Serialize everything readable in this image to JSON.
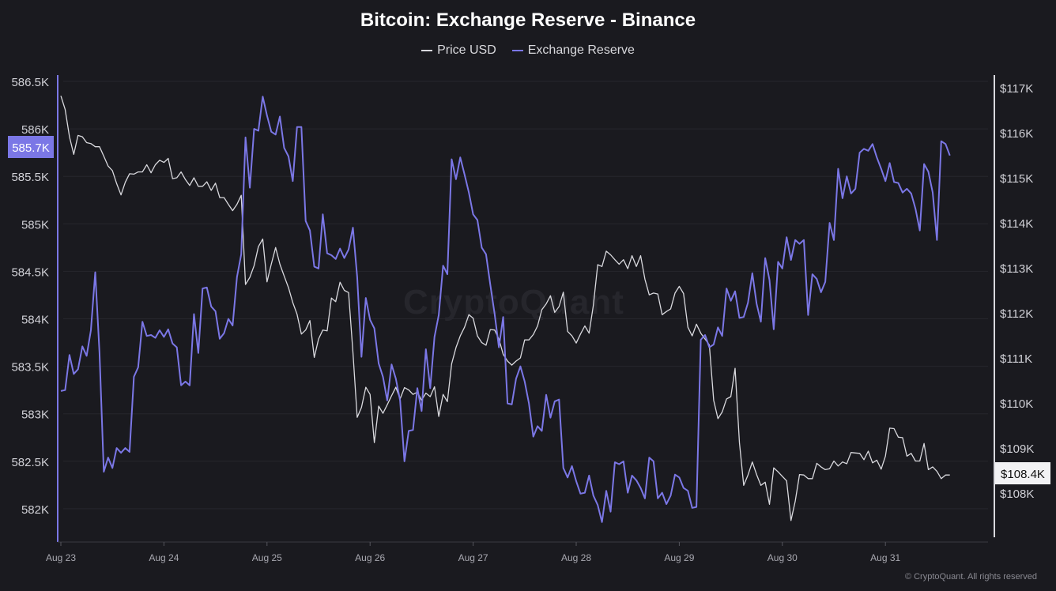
{
  "chart_data": {
    "type": "line",
    "title": "Bitcoin: Exchange Reserve - Binance",
    "legend_position": "top-center",
    "grid": true,
    "watermark": "CryptoQuant",
    "footer": "© CryptoQuant. All rights reserved",
    "x_ticks": [
      "Aug 23",
      "Aug 24",
      "Aug 25",
      "Aug 26",
      "Aug 27",
      "Aug 28",
      "Aug 29",
      "Aug 30",
      "Aug 31"
    ],
    "y_left": {
      "ticks": [
        "586.5K",
        "586K",
        "585.5K",
        "585K",
        "584.5K",
        "584K",
        "583.5K",
        "583K",
        "582.5K",
        "582K"
      ],
      "range": [
        582,
        586.5
      ],
      "current_label": "585.7K"
    },
    "y_right": {
      "ticks": [
        "$117K",
        "$116K",
        "$115K",
        "$114K",
        "$113K",
        "$112K",
        "$111K",
        "$110K",
        "$109K",
        "$108K"
      ],
      "range": [
        108,
        117
      ],
      "current_label": "$108.4K"
    },
    "x": [
      "Aug 23 00:00",
      "Aug 23 01:00",
      "Aug 23 02:00",
      "Aug 23 03:00",
      "Aug 23 04:00",
      "Aug 23 05:00",
      "Aug 23 06:00",
      "Aug 23 07:00",
      "Aug 23 08:00",
      "Aug 23 09:00",
      "Aug 23 10:00",
      "Aug 23 11:00",
      "Aug 23 12:00",
      "Aug 23 13:00",
      "Aug 23 14:00",
      "Aug 23 15:00",
      "Aug 23 16:00",
      "Aug 23 17:00",
      "Aug 23 18:00",
      "Aug 23 19:00",
      "Aug 23 20:00",
      "Aug 23 21:00",
      "Aug 23 22:00",
      "Aug 23 23:00",
      "Aug 24 00:00",
      "Aug 24 01:00",
      "Aug 24 02:00",
      "Aug 24 03:00",
      "Aug 24 04:00",
      "Aug 24 05:00",
      "Aug 24 06:00",
      "Aug 24 07:00",
      "Aug 24 08:00",
      "Aug 24 09:00",
      "Aug 24 10:00",
      "Aug 24 11:00",
      "Aug 24 12:00",
      "Aug 24 13:00",
      "Aug 24 14:00",
      "Aug 24 15:00",
      "Aug 24 16:00",
      "Aug 24 17:00",
      "Aug 24 18:00",
      "Aug 24 19:00",
      "Aug 24 20:00",
      "Aug 24 21:00",
      "Aug 24 22:00",
      "Aug 24 23:00",
      "Aug 25 00:00",
      "Aug 25 01:00",
      "Aug 25 02:00",
      "Aug 25 03:00",
      "Aug 25 04:00",
      "Aug 25 05:00",
      "Aug 25 06:00",
      "Aug 25 07:00",
      "Aug 25 08:00",
      "Aug 25 09:00",
      "Aug 25 10:00",
      "Aug 25 11:00",
      "Aug 25 12:00",
      "Aug 25 13:00",
      "Aug 25 14:00",
      "Aug 25 15:00",
      "Aug 25 16:00",
      "Aug 25 17:00",
      "Aug 25 18:00",
      "Aug 25 19:00",
      "Aug 25 20:00",
      "Aug 25 21:00",
      "Aug 25 22:00",
      "Aug 25 23:00",
      "Aug 26 00:00",
      "Aug 26 01:00",
      "Aug 26 02:00",
      "Aug 26 03:00",
      "Aug 26 04:00",
      "Aug 26 05:00",
      "Aug 26 06:00",
      "Aug 26 07:00",
      "Aug 26 08:00",
      "Aug 26 09:00",
      "Aug 26 10:00",
      "Aug 26 11:00",
      "Aug 26 12:00",
      "Aug 26 13:00",
      "Aug 26 14:00",
      "Aug 26 15:00",
      "Aug 26 16:00",
      "Aug 26 17:00",
      "Aug 26 18:00",
      "Aug 26 19:00",
      "Aug 26 20:00",
      "Aug 26 21:00",
      "Aug 26 22:00",
      "Aug 26 23:00",
      "Aug 27 00:00",
      "Aug 27 01:00",
      "Aug 27 02:00",
      "Aug 27 03:00",
      "Aug 27 04:00",
      "Aug 27 05:00",
      "Aug 27 06:00",
      "Aug 27 07:00",
      "Aug 27 08:00",
      "Aug 27 09:00",
      "Aug 27 10:00",
      "Aug 27 11:00",
      "Aug 27 12:00",
      "Aug 27 13:00",
      "Aug 27 14:00",
      "Aug 27 15:00",
      "Aug 27 16:00",
      "Aug 27 17:00",
      "Aug 27 18:00",
      "Aug 27 19:00",
      "Aug 27 20:00",
      "Aug 27 21:00",
      "Aug 27 22:00",
      "Aug 27 23:00",
      "Aug 28 00:00",
      "Aug 28 01:00",
      "Aug 28 02:00",
      "Aug 28 03:00",
      "Aug 28 04:00",
      "Aug 28 05:00",
      "Aug 28 06:00",
      "Aug 28 07:00",
      "Aug 28 08:00",
      "Aug 28 09:00",
      "Aug 28 10:00",
      "Aug 28 11:00",
      "Aug 28 12:00",
      "Aug 28 13:00",
      "Aug 28 14:00",
      "Aug 28 15:00",
      "Aug 28 16:00",
      "Aug 28 17:00",
      "Aug 28 18:00",
      "Aug 28 19:00",
      "Aug 28 20:00",
      "Aug 28 21:00",
      "Aug 28 22:00",
      "Aug 28 23:00",
      "Aug 29 00:00",
      "Aug 29 01:00",
      "Aug 29 02:00",
      "Aug 29 03:00",
      "Aug 29 04:00",
      "Aug 29 05:00",
      "Aug 29 06:00",
      "Aug 29 07:00",
      "Aug 29 08:00",
      "Aug 29 09:00",
      "Aug 29 10:00",
      "Aug 29 11:00",
      "Aug 29 12:00",
      "Aug 29 13:00",
      "Aug 29 14:00",
      "Aug 29 15:00",
      "Aug 29 16:00",
      "Aug 29 17:00",
      "Aug 29 18:00",
      "Aug 29 19:00",
      "Aug 29 20:00",
      "Aug 29 21:00",
      "Aug 29 22:00",
      "Aug 29 23:00",
      "Aug 30 00:00",
      "Aug 30 01:00",
      "Aug 30 02:00",
      "Aug 30 03:00",
      "Aug 30 04:00",
      "Aug 30 05:00",
      "Aug 30 06:00",
      "Aug 30 07:00",
      "Aug 30 08:00",
      "Aug 30 09:00",
      "Aug 30 10:00",
      "Aug 30 11:00",
      "Aug 30 12:00",
      "Aug 30 13:00",
      "Aug 30 14:00",
      "Aug 30 15:00",
      "Aug 30 16:00",
      "Aug 30 17:00",
      "Aug 30 18:00",
      "Aug 30 19:00",
      "Aug 30 20:00",
      "Aug 30 21:00",
      "Aug 30 22:00",
      "Aug 30 23:00",
      "Aug 31 00:00",
      "Aug 31 01:00",
      "Aug 31 02:00",
      "Aug 31 03:00",
      "Aug 31 04:00",
      "Aug 31 05:00",
      "Aug 31 06:00",
      "Aug 31 07:00",
      "Aug 31 08:00",
      "Aug 31 09:00",
      "Aug 31 10:00",
      "Aug 31 11:00",
      "Aug 31 12:00",
      "Aug 31 13:00",
      "Aug 31 14:00",
      "Aug 31 15:00"
    ],
    "series": [
      {
        "name": "Price USD",
        "axis": "right",
        "unit": "K USD",
        "color": "#d9d9de",
        "values": [
          116.82,
          116.52,
          115.91,
          115.52,
          115.94,
          115.91,
          115.78,
          115.76,
          115.69,
          115.69,
          115.48,
          115.26,
          115.16,
          114.87,
          114.62,
          114.9,
          115.09,
          115.08,
          115.13,
          115.13,
          115.29,
          115.11,
          115.29,
          115.39,
          115.34,
          115.43,
          114.98,
          115.0,
          115.13,
          114.96,
          114.83,
          115.0,
          114.81,
          114.81,
          114.91,
          114.72,
          114.88,
          114.56,
          114.56,
          114.41,
          114.27,
          114.41,
          114.61,
          112.63,
          112.79,
          113.05,
          113.47,
          113.64,
          112.69,
          113.08,
          113.45,
          113.08,
          112.82,
          112.56,
          112.23,
          111.97,
          111.53,
          111.62,
          111.83,
          111.01,
          111.42,
          111.62,
          111.6,
          112.33,
          112.25,
          112.68,
          112.5,
          112.45,
          111.13,
          109.68,
          109.9,
          110.35,
          110.19,
          109.12,
          109.93,
          109.77,
          109.96,
          110.16,
          110.35,
          110.09,
          110.34,
          110.29,
          110.19,
          110.24,
          110.06,
          110.22,
          110.14,
          110.36,
          109.7,
          110.19,
          110.03,
          110.87,
          111.23,
          111.49,
          111.68,
          111.96,
          111.88,
          111.49,
          111.34,
          111.28,
          111.63,
          111.62,
          111.42,
          111.08,
          110.93,
          110.84,
          110.93,
          111.0,
          111.4,
          111.4,
          111.52,
          111.71,
          112.07,
          112.2,
          112.38,
          112.01,
          112.14,
          112.46,
          111.59,
          111.49,
          111.33,
          111.53,
          111.71,
          111.55,
          112.17,
          113.07,
          113.03,
          113.37,
          113.29,
          113.18,
          113.08,
          113.18,
          112.98,
          113.27,
          113.03,
          113.27,
          112.75,
          112.4,
          112.44,
          112.42,
          111.96,
          112.03,
          112.09,
          112.44,
          112.59,
          112.43,
          111.68,
          111.49,
          111.75,
          111.55,
          111.42,
          111.29,
          110.06,
          109.65,
          109.8,
          110.09,
          110.14,
          110.77,
          109.12,
          108.17,
          108.4,
          108.69,
          108.41,
          108.17,
          108.24,
          107.75,
          108.56,
          108.47,
          108.37,
          108.27,
          107.39,
          107.82,
          108.41,
          108.4,
          108.32,
          108.32,
          108.66,
          108.58,
          108.52,
          108.54,
          108.71,
          108.6,
          108.69,
          108.65,
          108.9,
          108.89,
          108.88,
          108.74,
          108.93,
          108.67,
          108.73,
          108.53,
          108.82,
          109.44,
          109.43,
          109.24,
          109.23,
          108.82,
          108.88,
          108.71,
          108.71,
          109.1,
          108.52,
          108.58,
          108.48,
          108.32,
          108.4,
          108.4
        ]
      },
      {
        "name": "Exchange Reserve",
        "axis": "left",
        "unit": "K BTC",
        "color": "#7b77e6",
        "values": [
          583.24,
          583.25,
          583.62,
          583.42,
          583.47,
          583.71,
          583.61,
          583.88,
          584.49,
          583.64,
          582.39,
          582.54,
          582.43,
          582.64,
          582.59,
          582.64,
          582.6,
          583.39,
          583.49,
          583.97,
          583.82,
          583.83,
          583.8,
          583.88,
          583.81,
          583.89,
          583.74,
          583.7,
          583.3,
          583.34,
          583.3,
          584.05,
          583.64,
          584.32,
          584.33,
          584.13,
          584.08,
          583.79,
          583.85,
          584.0,
          583.93,
          584.44,
          584.68,
          585.91,
          585.38,
          586.0,
          585.98,
          586.34,
          586.14,
          585.97,
          585.94,
          586.13,
          585.8,
          585.71,
          585.45,
          586.02,
          586.02,
          585.03,
          584.93,
          584.55,
          584.53,
          585.1,
          584.69,
          584.67,
          584.63,
          584.74,
          584.64,
          584.73,
          584.96,
          584.44,
          583.6,
          584.22,
          583.99,
          583.9,
          583.53,
          583.39,
          583.14,
          583.52,
          583.37,
          583.14,
          582.5,
          582.82,
          582.83,
          583.27,
          583.03,
          583.68,
          583.27,
          583.81,
          584.04,
          584.56,
          584.47,
          585.68,
          585.47,
          585.7,
          585.52,
          585.33,
          585.1,
          585.04,
          584.75,
          584.68,
          584.36,
          584.05,
          583.7,
          584.02,
          583.11,
          583.1,
          583.37,
          583.5,
          583.34,
          583.11,
          582.76,
          582.87,
          582.82,
          583.2,
          582.96,
          583.13,
          583.15,
          582.43,
          582.33,
          582.45,
          582.29,
          582.16,
          582.17,
          582.35,
          582.14,
          582.04,
          581.86,
          582.19,
          581.97,
          582.49,
          582.47,
          582.5,
          582.17,
          582.35,
          582.3,
          582.22,
          582.11,
          582.54,
          582.5,
          582.11,
          582.17,
          582.05,
          582.14,
          582.36,
          582.33,
          582.22,
          582.19,
          582.01,
          582.02,
          583.78,
          583.83,
          583.7,
          583.73,
          583.91,
          583.82,
          584.32,
          584.19,
          584.29,
          584.01,
          584.02,
          584.17,
          584.48,
          584.16,
          583.97,
          584.64,
          584.41,
          583.89,
          584.6,
          584.53,
          584.86,
          584.62,
          584.83,
          584.79,
          584.83,
          584.04,
          584.47,
          584.42,
          584.28,
          584.39,
          585.01,
          584.83,
          585.58,
          585.27,
          585.5,
          585.32,
          585.37,
          585.75,
          585.79,
          585.77,
          585.84,
          585.7,
          585.58,
          585.45,
          585.64,
          585.44,
          585.43,
          585.33,
          585.37,
          585.32,
          585.16,
          584.93,
          585.63,
          585.55,
          585.33,
          584.83,
          585.87,
          585.84,
          585.72
        ]
      }
    ]
  }
}
